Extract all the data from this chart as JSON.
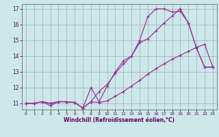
{
  "xlabel": "Windchill (Refroidissement éolien,°C)",
  "background_color": "#cce8e8",
  "grid_color": "#9999bb",
  "line_color": "#993399",
  "xlim": [
    -0.5,
    23.5
  ],
  "ylim": [
    10.6,
    17.3
  ],
  "xticks": [
    0,
    1,
    2,
    3,
    4,
    5,
    6,
    7,
    8,
    9,
    10,
    11,
    12,
    13,
    14,
    15,
    16,
    17,
    18,
    19,
    20,
    21,
    22,
    23
  ],
  "yticks": [
    11,
    12,
    13,
    14,
    15,
    16,
    17
  ],
  "line1_x": [
    0,
    1,
    2,
    3,
    4,
    5,
    6,
    7,
    8,
    9,
    10,
    11,
    12,
    13,
    14,
    15,
    16,
    17,
    18,
    19,
    20,
    21,
    22,
    23
  ],
  "line1_y": [
    11.0,
    11.0,
    11.1,
    10.85,
    11.1,
    11.1,
    11.05,
    10.7,
    11.1,
    11.05,
    11.15,
    11.45,
    11.75,
    12.1,
    12.45,
    12.85,
    13.2,
    13.5,
    13.8,
    14.05,
    14.3,
    14.55,
    14.75,
    13.3
  ],
  "line2_x": [
    0,
    1,
    2,
    3,
    4,
    5,
    6,
    7,
    8,
    9,
    10,
    11,
    12,
    13,
    14,
    15,
    16,
    17,
    18,
    19,
    20,
    21,
    22,
    23
  ],
  "line2_y": [
    11.0,
    11.0,
    11.1,
    11.0,
    11.1,
    11.1,
    11.05,
    10.7,
    12.0,
    11.1,
    12.1,
    13.0,
    13.7,
    14.0,
    14.85,
    15.1,
    15.6,
    16.1,
    16.55,
    17.0,
    16.1,
    14.5,
    13.3,
    13.3
  ],
  "line3_x": [
    0,
    1,
    2,
    3,
    4,
    5,
    6,
    7,
    8,
    9,
    10,
    11,
    12,
    13,
    14,
    15,
    16,
    17,
    18,
    19,
    20,
    21,
    22,
    23
  ],
  "line3_y": [
    11.0,
    11.0,
    11.1,
    11.0,
    11.1,
    11.1,
    11.05,
    10.7,
    11.1,
    11.75,
    12.2,
    12.9,
    13.5,
    14.0,
    15.0,
    16.5,
    17.0,
    17.0,
    16.8,
    16.85,
    16.1,
    14.5,
    13.3,
    13.3
  ]
}
